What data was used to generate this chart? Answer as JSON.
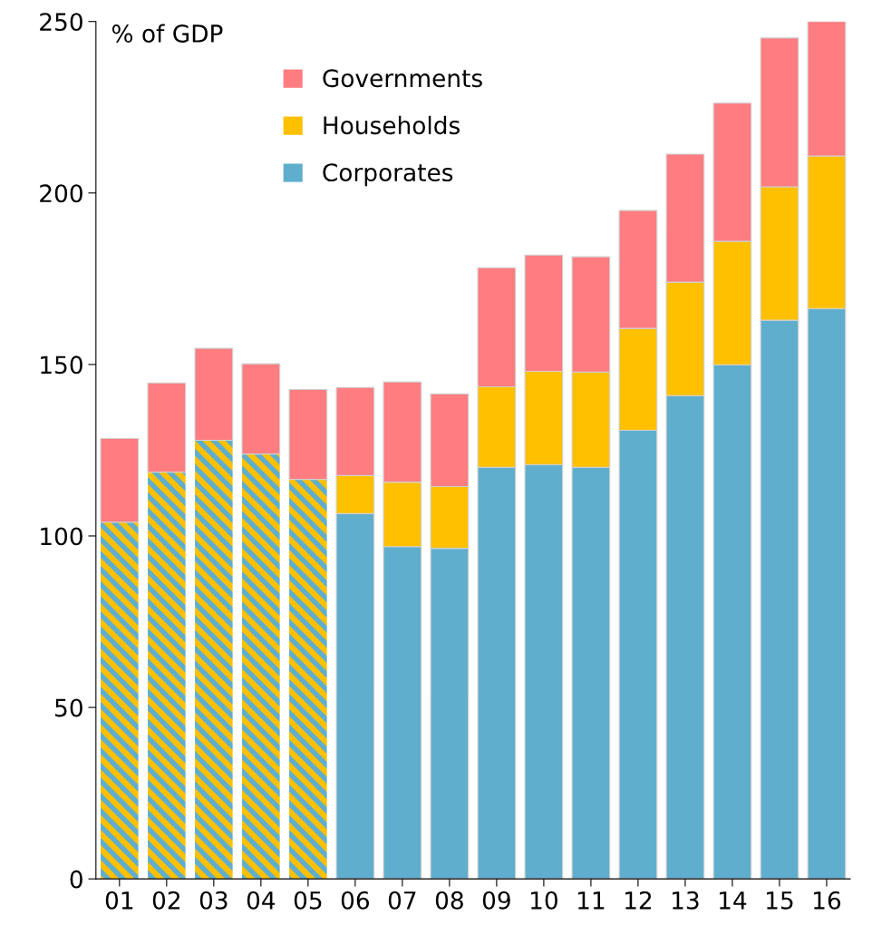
{
  "chart_data": {
    "type": "bar",
    "stacked": true,
    "ylabel": "% of GDP",
    "categories": [
      "01",
      "02",
      "03",
      "04",
      "05",
      "06",
      "07",
      "08",
      "09",
      "10",
      "11",
      "12",
      "13",
      "14",
      "15",
      "16"
    ],
    "series": [
      {
        "color": "#ffc000",
        "values": [
          104,
          118.6,
          127.9,
          123.9,
          116.5,
          null,
          null,
          null,
          null,
          null,
          null,
          null,
          null,
          null,
          null,
          null
        ]
      },
      {
        "name": "Corporates",
        "color": "#60aecd",
        "values": [
          null,
          null,
          null,
          null,
          null,
          106.5,
          96.9,
          96.4,
          120,
          120.8,
          120,
          130.8,
          140.9,
          149.9,
          162.9,
          166.3
        ]
      },
      {
        "name": "Households",
        "color": "#ffc000",
        "values": [
          null,
          null,
          null,
          null,
          null,
          11.1,
          18.8,
          18,
          23.5,
          27.2,
          27.8,
          29.7,
          33.1,
          36,
          38.9,
          44.5
        ]
      },
      {
        "name": "Governments",
        "color": "#ff7c80",
        "values": [
          24.4,
          26,
          26.8,
          26.3,
          26.2,
          25.7,
          29.2,
          27,
          34.7,
          33.9,
          33.6,
          34.4,
          37.3,
          40.3,
          43.4,
          39.2
        ]
      }
    ],
    "ylim": [
      0,
      250
    ],
    "yticks": [
      0,
      50,
      100,
      150,
      200,
      250
    ],
    "grid": false,
    "legend": "top left"
  }
}
